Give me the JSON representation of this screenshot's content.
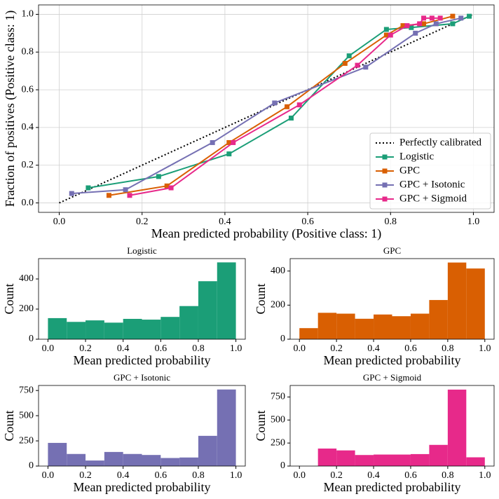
{
  "chart_data": [
    {
      "type": "line",
      "xlabel": "Mean predicted probability (Positive class: 1)",
      "ylabel": "Fraction of positives (Positive class: 1)",
      "xlim": [
        -0.05,
        1.05
      ],
      "ylim": [
        -0.05,
        1.05
      ],
      "xticks": [
        {
          "value": 0,
          "label": "0.0"
        },
        0.2,
        0.4,
        0.6,
        0.8,
        {
          "value": 1,
          "label": "1.0"
        }
      ],
      "yticks": [
        {
          "value": 0,
          "label": "0.0"
        },
        0.2,
        0.4,
        0.6,
        0.8,
        {
          "value": 1,
          "label": "1.0"
        }
      ],
      "grid": true,
      "legend": "lower right",
      "series": [
        {
          "name": "Perfectly calibrated",
          "color": "#000000",
          "linestyle": "dotted",
          "marker": "none",
          "x": [
            0,
            1
          ],
          "values": [
            0,
            1
          ]
        },
        {
          "name": "Logistic",
          "color": "#1b9e77",
          "linestyle": "solid",
          "marker": "square",
          "x": [
            0.07,
            0.24,
            0.41,
            0.56,
            0.7,
            0.79,
            0.85,
            0.95,
            0.99
          ],
          "values": [
            0.08,
            0.14,
            0.26,
            0.45,
            0.78,
            0.92,
            0.93,
            0.95,
            0.99
          ]
        },
        {
          "name": "GPC",
          "color": "#d95f02",
          "linestyle": "solid",
          "marker": "square",
          "x": [
            0.12,
            0.26,
            0.41,
            0.55,
            0.69,
            0.79,
            0.83,
            0.88,
            0.95
          ],
          "values": [
            0.04,
            0.09,
            0.32,
            0.51,
            0.74,
            0.89,
            0.94,
            0.95,
            0.99
          ]
        },
        {
          "name": "GPC + Isotonic",
          "color": "#7570b3",
          "linestyle": "solid",
          "marker": "square",
          "x": [
            0.03,
            0.16,
            0.37,
            0.52,
            0.74,
            0.86,
            0.91,
            0.97
          ],
          "values": [
            0.05,
            0.07,
            0.32,
            0.53,
            0.72,
            0.9,
            0.95,
            0.98
          ]
        },
        {
          "name": "GPC + Sigmoid",
          "color": "#e7298a",
          "linestyle": "solid",
          "marker": "square",
          "x": [
            0.17,
            0.27,
            0.42,
            0.58,
            0.72,
            0.8,
            0.84,
            0.87,
            0.88,
            0.9,
            0.92
          ],
          "values": [
            0.04,
            0.08,
            0.32,
            0.52,
            0.73,
            0.89,
            0.94,
            0.95,
            0.98,
            0.98,
            0.98
          ]
        }
      ]
    },
    {
      "type": "histogram",
      "title": "Logistic",
      "xlabel": "Mean predicted probability",
      "ylabel": "Count",
      "color": "#1b9e77",
      "bins": [
        0,
        0.1,
        0.2,
        0.3,
        0.4,
        0.5,
        0.6,
        0.7,
        0.8,
        0.9,
        1
      ],
      "counts": [
        140,
        115,
        125,
        110,
        135,
        130,
        148,
        220,
        385,
        510
      ],
      "xlim": [
        -0.05,
        1.05
      ],
      "ylim": [
        0,
        535
      ],
      "xticks": [
        {
          "value": 0,
          "label": "0.0"
        },
        0.2,
        0.4,
        0.6,
        0.8,
        {
          "value": 1,
          "label": "1.0"
        }
      ],
      "yticks": [
        0,
        200,
        400
      ]
    },
    {
      "type": "histogram",
      "title": "GPC",
      "xlabel": "Mean predicted probability",
      "ylabel": "Count",
      "color": "#d95f02",
      "bins": [
        0,
        0.1,
        0.2,
        0.3,
        0.4,
        0.5,
        0.6,
        0.7,
        0.8,
        0.9,
        1
      ],
      "counts": [
        65,
        155,
        150,
        120,
        145,
        135,
        150,
        230,
        450,
        415
      ],
      "xlim": [
        -0.05,
        1.05
      ],
      "ylim": [
        0,
        473
      ],
      "xticks": [
        {
          "value": 0,
          "label": "0.0"
        },
        0.2,
        0.4,
        0.6,
        0.8,
        {
          "value": 1,
          "label": "1.0"
        }
      ],
      "yticks": [
        0,
        200,
        400
      ]
    },
    {
      "type": "histogram",
      "title": "GPC + Isotonic",
      "xlabel": "Mean predicted probability",
      "ylabel": "Count",
      "color": "#7570b3",
      "bins": [
        0,
        0.1,
        0.2,
        0.3,
        0.4,
        0.5,
        0.6,
        0.7,
        0.8,
        0.9,
        1
      ],
      "counts": [
        230,
        120,
        55,
        140,
        120,
        110,
        80,
        85,
        300,
        760
      ],
      "xlim": [
        -0.05,
        1.05
      ],
      "ylim": [
        0,
        800
      ],
      "xticks": [
        {
          "value": 0,
          "label": "0.0"
        },
        0.2,
        0.4,
        0.6,
        0.8,
        {
          "value": 1,
          "label": "1.0"
        }
      ],
      "yticks": [
        0,
        250,
        500,
        750
      ]
    },
    {
      "type": "histogram",
      "title": "GPC + Sigmoid",
      "xlabel": "Mean predicted probability",
      "ylabel": "Count",
      "color": "#e7298a",
      "bins": [
        0,
        0.1,
        0.2,
        0.3,
        0.4,
        0.5,
        0.6,
        0.7,
        0.8,
        0.9,
        1
      ],
      "counts": [
        0,
        190,
        170,
        120,
        125,
        125,
        130,
        230,
        830,
        95
      ],
      "xlim": [
        -0.05,
        1.05
      ],
      "ylim": [
        0,
        875
      ],
      "xticks": [
        {
          "value": 0,
          "label": "0.0"
        },
        0.2,
        0.4,
        0.6,
        0.8,
        {
          "value": 1,
          "label": "1.0"
        }
      ],
      "yticks": [
        0,
        250,
        500,
        750
      ]
    }
  ]
}
